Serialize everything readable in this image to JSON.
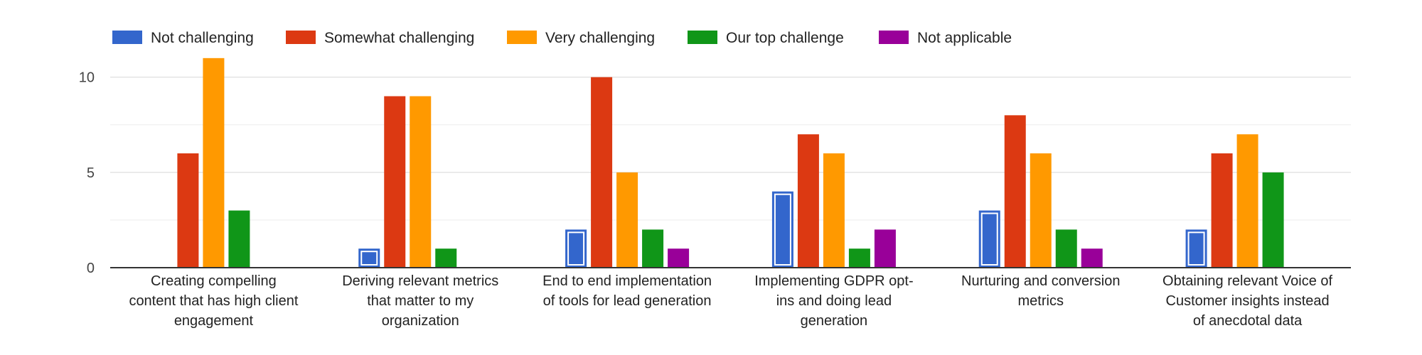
{
  "chart_data": {
    "type": "bar",
    "categories": [
      [
        "Creating compelling",
        "content that has high client",
        "engagement"
      ],
      [
        "Deriving relevant metrics",
        "that matter to my",
        "organization"
      ],
      [
        "End to end implementation",
        "of tools for lead generation"
      ],
      [
        "Implementing GDPR opt-",
        "ins and doing lead",
        "generation"
      ],
      [
        "Nurturing and conversion",
        "metrics"
      ],
      [
        "Obtaining relevant Voice of",
        "Customer insights instead",
        "of anecdotal data"
      ]
    ],
    "series": [
      {
        "name": "Not challenging",
        "color": "#3366cc",
        "values": [
          0,
          1,
          2,
          4,
          3,
          2
        ]
      },
      {
        "name": "Somewhat challenging",
        "color": "#dc3912",
        "values": [
          6,
          9,
          10,
          7,
          8,
          6
        ]
      },
      {
        "name": "Very challenging",
        "color": "#ff9900",
        "values": [
          11,
          9,
          5,
          6,
          6,
          7
        ]
      },
      {
        "name": "Our top challenge",
        "color": "#109618",
        "values": [
          3,
          1,
          2,
          1,
          2,
          5
        ]
      },
      {
        "name": "Not applicable",
        "color": "#990099",
        "values": [
          0,
          0,
          1,
          2,
          1,
          0
        ]
      }
    ],
    "y_ticks": [
      0,
      5,
      10
    ],
    "ylim": [
      0,
      12
    ],
    "grid": true,
    "legend_position": "top"
  }
}
